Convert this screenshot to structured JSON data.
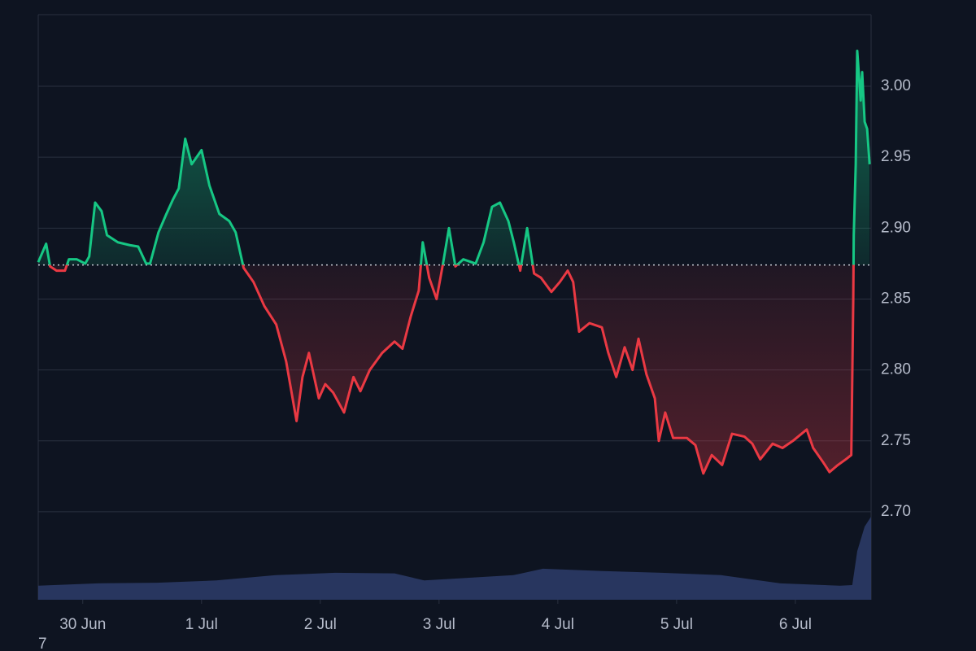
{
  "chart_data": {
    "type": "baseline",
    "x": [
      -9.0,
      -7.4,
      -6.6,
      -5.3,
      -3.6,
      -2.8,
      -1.2,
      0.5,
      1.3,
      2.5,
      3.8,
      4.9,
      7.1,
      9.5,
      11.2,
      12.8,
      13.6,
      15.3,
      16.9,
      18.2,
      19.4,
      20.7,
      22.0,
      24.0,
      25.6,
      27.6,
      29.6,
      30.9,
      32.5,
      34.5,
      36.7,
      39.1,
      41.1,
      43.2,
      44.4,
      45.7,
      47.7,
      49.0,
      50.6,
      52.8,
      54.7,
      56.1,
      58.0,
      60.5,
      63.0,
      64.6,
      66.3,
      67.9,
      68.7,
      70.0,
      71.5,
      72.8,
      74.0,
      75.3,
      76.9,
      79.4,
      81.0,
      82.7,
      84.3,
      86.0,
      87.1,
      88.4,
      89.8,
      91.2,
      92.6,
      94.7,
      96.4,
      98.0,
      99.1,
      100.3,
      102.4,
      104.9,
      106.2,
      107.8,
      109.5,
      111.1,
      112.3,
      113.9,
      115.6,
      116.4,
      117.7,
      119.3,
      122.1,
      123.8,
      125.4,
      127.1,
      129.2,
      131.2,
      133.7,
      135.3,
      136.9,
      139.4,
      141.4,
      143.5,
      146.3,
      147.6,
      149.6,
      150.9,
      152.6,
      154.2,
      155.3,
      155.7,
      155.8,
      156.2,
      156.5,
      157.2,
      157.5,
      158.0,
      158.5,
      159.0
    ],
    "series": [
      {
        "values": [
          2.876,
          2.889,
          2.873,
          2.87,
          2.87,
          2.878,
          2.878,
          2.875,
          2.88,
          2.918,
          2.912,
          2.895,
          2.89,
          2.888,
          2.887,
          2.875,
          2.875,
          2.897,
          2.91,
          2.92,
          2.928,
          2.963,
          2.945,
          2.955,
          2.93,
          2.91,
          2.905,
          2.897,
          2.872,
          2.862,
          2.845,
          2.832,
          2.806,
          2.764,
          2.795,
          2.812,
          2.78,
          2.79,
          2.784,
          2.77,
          2.795,
          2.785,
          2.8,
          2.812,
          2.82,
          2.815,
          2.838,
          2.856,
          2.89,
          2.865,
          2.85,
          2.875,
          2.9,
          2.873,
          2.878,
          2.875,
          2.89,
          2.915,
          2.918,
          2.905,
          2.89,
          2.87,
          2.9,
          2.868,
          2.865,
          2.855,
          2.862,
          2.87,
          2.862,
          2.827,
          2.833,
          2.83,
          2.812,
          2.795,
          2.816,
          2.8,
          2.822,
          2.797,
          2.78,
          2.75,
          2.77,
          2.752,
          2.752,
          2.747,
          2.727,
          2.74,
          2.733,
          2.755,
          2.753,
          2.748,
          2.737,
          2.748,
          2.745,
          2.75,
          2.758,
          2.745,
          2.735,
          2.728,
          2.733,
          2.737,
          2.74,
          2.85,
          2.895,
          2.945,
          3.025,
          2.99,
          3.01,
          2.975,
          2.97,
          2.945
        ],
        "color_above": "#16c784",
        "color_below": "#ea3943"
      },
      {
        "axis": "y2",
        "color": "#2b3a66",
        "x": [
          -9.0,
          3.0,
          15.0,
          27.0,
          39.0,
          51.0,
          63.0,
          69.0,
          75.0,
          87.0,
          93.0,
          105.0,
          117.0,
          129.0,
          141.0,
          153.0,
          155.5,
          156.5,
          158.0,
          159.3
        ],
        "values": [
          2.4,
          2.8,
          2.9,
          3.3,
          4.2,
          4.6,
          4.5,
          3.3,
          3.6,
          4.2,
          5.3,
          4.9,
          4.6,
          4.2,
          2.8,
          2.4,
          2.5,
          8.3,
          12.5,
          14.2
        ]
      }
    ],
    "baseline": 2.874,
    "xlim": [
      -9.0,
      159.3
    ],
    "xticks": [
      {
        "value": 0,
        "label": "30 Jun"
      },
      {
        "value": 24,
        "label": "1 Jul"
      },
      {
        "value": 48,
        "label": "2 Jul"
      },
      {
        "value": 72,
        "label": "3 Jul"
      },
      {
        "value": 96,
        "label": "4 Jul"
      },
      {
        "value": 120,
        "label": "5 Jul"
      },
      {
        "value": 144,
        "label": "6 Jul"
      }
    ],
    "ylim": [
      2.638,
      3.0505
    ],
    "yticks": [
      {
        "value": 2.7,
        "label": "2.70"
      },
      2.75,
      {
        "value": 2.8,
        "label": "2.80"
      },
      2.85,
      {
        "value": 2.9,
        "label": "2.90"
      },
      2.95,
      {
        "value": 3.0,
        "label": "3.00"
      }
    ],
    "y2lim": [
      0,
      100
    ],
    "grid": true,
    "footnote": "7"
  }
}
